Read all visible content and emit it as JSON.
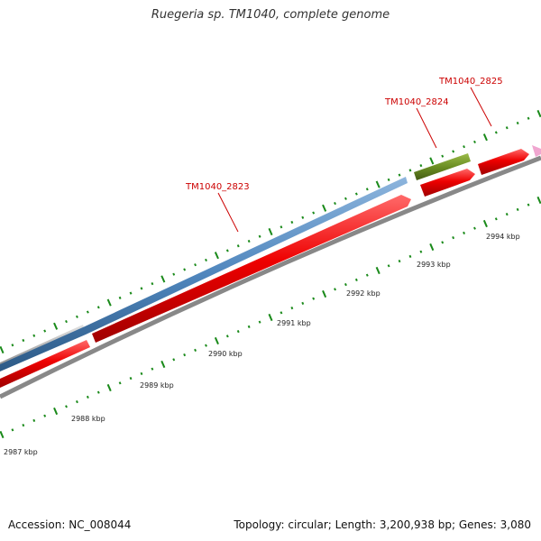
{
  "title": "Ruegeria sp. TM1040, complete genome",
  "footer": {
    "accession": "Accession: NC_008044",
    "summary": "Topology: circular; Length: 3,200,938 bp; Genes: 3,080"
  },
  "gene_labels": [
    "TM1040_2823",
    "TM1040_2824",
    "TM1040_2825"
  ],
  "kbp_labels": [
    "2987 kbp",
    "2988 kbp",
    "2989 kbp",
    "2990 kbp",
    "2991 kbp",
    "2992 kbp",
    "2993 kbp",
    "2994 kbp"
  ],
  "colors": {
    "cds_red": "#ee0000",
    "gene_blue": "#4f86bd",
    "gene_green": "#6b8e23",
    "gene_grey": "#b5b5b5",
    "backbone": "#888888",
    "tick_green": "#1a8a1a",
    "label_red": "#cc0000",
    "pink_arrow": "#f0a6d0"
  }
}
